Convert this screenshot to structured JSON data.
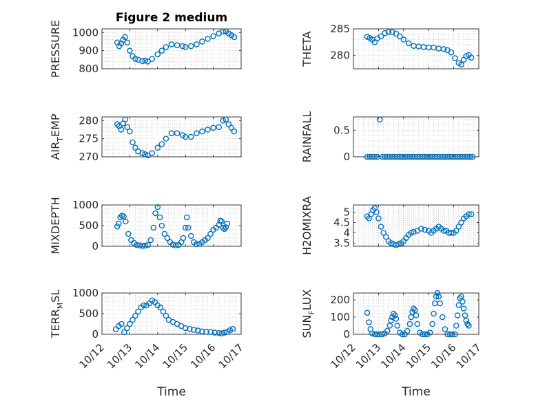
{
  "figure_title": "Figure 2 medium",
  "colors": {
    "marker": "#0072BD",
    "axis": "#262626",
    "grid": "#c8c8c8"
  },
  "chart_data": [
    {
      "type": "scatter",
      "ylabel": "PRESSURE",
      "xlim": [
        0,
        5
      ],
      "ylim": [
        800,
        1020
      ],
      "yticks": [
        800,
        900,
        1000
      ],
      "x": [
        0.55,
        0.62,
        0.69,
        0.76,
        0.83,
        0.91,
        1.0,
        1.1,
        1.2,
        1.3,
        1.45,
        1.55,
        1.65,
        1.8,
        2.0,
        2.15,
        2.3,
        2.5,
        2.7,
        2.9,
        3.0,
        3.2,
        3.4,
        3.6,
        3.8,
        4.0,
        4.2,
        4.35,
        4.45,
        4.55,
        4.65,
        4.75
      ],
      "y": [
        945,
        925,
        940,
        960,
        975,
        945,
        900,
        870,
        855,
        850,
        842,
        845,
        840,
        855,
        880,
        900,
        920,
        935,
        930,
        925,
        920,
        925,
        935,
        950,
        965,
        980,
        995,
        1005,
        1005,
        995,
        985,
        975
      ]
    },
    {
      "type": "scatter",
      "ylabel": "THETA",
      "xlim": [
        0,
        5
      ],
      "ylim": [
        277.5,
        285
      ],
      "yticks": [
        280,
        285
      ],
      "x": [
        0.55,
        0.65,
        0.75,
        0.85,
        0.95,
        1.1,
        1.25,
        1.4,
        1.55,
        1.7,
        1.85,
        2.0,
        2.2,
        2.4,
        2.6,
        2.8,
        3.0,
        3.2,
        3.4,
        3.6,
        3.75,
        3.9,
        4.05,
        4.2,
        4.3,
        4.4,
        4.5,
        4.6,
        4.7
      ],
      "y": [
        283.5,
        283.3,
        283.0,
        282.5,
        283.2,
        283.6,
        284.2,
        284.4,
        284.4,
        284.1,
        283.6,
        283.0,
        282.3,
        281.8,
        281.7,
        281.6,
        281.5,
        281.5,
        281.3,
        281.2,
        281.0,
        280.6,
        279.5,
        278.6,
        278.3,
        279.2,
        279.9,
        280.1,
        279.6
      ]
    },
    {
      "type": "scatter",
      "ylabel": "AIR_TEMP",
      "ylabel_main": "AIR",
      "ylabel_sub": "T",
      "ylabel_rest": "EMP",
      "xlim": [
        0,
        5
      ],
      "ylim": [
        270,
        281
      ],
      "yticks": [
        270,
        275,
        280
      ],
      "x": [
        0.55,
        0.62,
        0.69,
        0.76,
        0.83,
        0.91,
        1.0,
        1.1,
        1.2,
        1.3,
        1.45,
        1.55,
        1.65,
        1.8,
        2.0,
        2.15,
        2.3,
        2.5,
        2.7,
        2.9,
        3.0,
        3.2,
        3.4,
        3.6,
        3.8,
        4.0,
        4.2,
        4.35,
        4.45,
        4.55,
        4.65,
        4.75
      ],
      "y": [
        279,
        278.5,
        277.5,
        279.2,
        280.3,
        278.2,
        277,
        274,
        272.5,
        271.5,
        271,
        270.7,
        270.4,
        271,
        272.5,
        273.5,
        275,
        276.5,
        276.5,
        276,
        275.5,
        275.5,
        276.5,
        277,
        277.5,
        278,
        278.2,
        280,
        280.3,
        279,
        278,
        277
      ]
    },
    {
      "type": "scatter",
      "ylabel": "RAINFALL",
      "xlim": [
        0,
        5
      ],
      "ylim": [
        0,
        0.75
      ],
      "yticks": [
        0,
        0.5
      ],
      "x": [
        0.55,
        0.65,
        0.75,
        0.85,
        0.95,
        1.05,
        1.15,
        1.25,
        1.35,
        1.45,
        1.55,
        1.65,
        1.75,
        1.85,
        1.95,
        2.05,
        2.15,
        2.25,
        2.35,
        2.45,
        2.55,
        2.65,
        2.75,
        2.85,
        2.95,
        3.05,
        3.15,
        3.25,
        3.35,
        3.45,
        3.55,
        3.65,
        3.75,
        3.85,
        3.95,
        4.05,
        4.15,
        4.25,
        4.35,
        4.45,
        4.55,
        4.65,
        4.75
      ],
      "y": [
        0,
        0,
        0,
        0,
        0,
        0.7,
        0,
        0,
        0,
        0,
        0,
        0,
        0,
        0,
        0,
        0,
        0,
        0,
        0,
        0,
        0,
        0,
        0,
        0,
        0,
        0,
        0,
        0,
        0,
        0,
        0,
        0,
        0,
        0,
        0,
        0,
        0,
        0,
        0,
        0,
        0,
        0,
        0
      ]
    },
    {
      "type": "scatter",
      "ylabel": "MIXDEPTH",
      "xlim": [
        0,
        5
      ],
      "ylim": [
        0,
        1000
      ],
      "yticks": [
        0,
        500,
        1000
      ],
      "x": [
        0.55,
        0.6,
        0.66,
        0.72,
        0.78,
        0.85,
        0.95,
        1.05,
        1.15,
        1.25,
        1.35,
        1.45,
        1.55,
        1.65,
        1.75,
        1.85,
        1.92,
        2.0,
        2.08,
        2.15,
        2.25,
        2.35,
        2.45,
        2.55,
        2.65,
        2.75,
        2.85,
        2.92,
        3.0,
        3.05,
        3.1,
        3.2,
        3.3,
        3.4,
        3.5,
        3.6,
        3.7,
        3.8,
        3.9,
        4.0,
        4.1,
        4.2,
        4.25,
        4.3,
        4.35,
        4.4,
        4.45,
        4.5
      ],
      "y": [
        480,
        550,
        700,
        740,
        720,
        600,
        300,
        150,
        80,
        30,
        20,
        10,
        15,
        30,
        150,
        450,
        800,
        950,
        700,
        500,
        300,
        200,
        100,
        40,
        20,
        30,
        100,
        200,
        450,
        700,
        450,
        250,
        100,
        50,
        60,
        100,
        150,
        200,
        300,
        400,
        450,
        520,
        620,
        600,
        450,
        420,
        460,
        550
      ]
    },
    {
      "type": "scatter",
      "ylabel": "H2OMIXRA",
      "xlim": [
        0,
        5
      ],
      "ylim": [
        3.35,
        5.35
      ],
      "yticks": [
        3.5,
        4,
        4.5,
        5
      ],
      "x": [
        0.55,
        0.62,
        0.7,
        0.78,
        0.85,
        0.92,
        1.0,
        1.1,
        1.2,
        1.3,
        1.4,
        1.5,
        1.6,
        1.7,
        1.8,
        1.9,
        2.0,
        2.1,
        2.2,
        2.3,
        2.4,
        2.55,
        2.7,
        2.85,
        3.0,
        3.1,
        3.2,
        3.3,
        3.4,
        3.5,
        3.6,
        3.7,
        3.8,
        3.9,
        4.0,
        4.1,
        4.2,
        4.3,
        4.4,
        4.5,
        4.6,
        4.7
      ],
      "y": [
        4.8,
        4.7,
        4.9,
        5.1,
        5.2,
        5.0,
        4.7,
        4.3,
        4.0,
        3.8,
        3.6,
        3.5,
        3.45,
        3.4,
        3.45,
        3.5,
        3.6,
        3.75,
        3.9,
        4.0,
        4.05,
        4.1,
        4.2,
        4.15,
        4.1,
        4.0,
        4.1,
        4.2,
        4.3,
        4.2,
        4.1,
        4.1,
        4.0,
        4.0,
        4.0,
        4.1,
        4.3,
        4.5,
        4.7,
        4.8,
        4.9,
        4.9
      ]
    },
    {
      "type": "scatter",
      "ylabel": "TERR_MSL",
      "ylabel_main": "TERR",
      "ylabel_sub": "M",
      "ylabel_rest": "SL",
      "xlim": [
        0,
        5
      ],
      "ylim": [
        0,
        1000
      ],
      "yticks": [
        0,
        500,
        1000
      ],
      "x": [
        0.5,
        0.6,
        0.7,
        0.8,
        0.9,
        1.0,
        1.1,
        1.2,
        1.3,
        1.4,
        1.5,
        1.6,
        1.7,
        1.8,
        1.9,
        2.0,
        2.1,
        2.2,
        2.3,
        2.4,
        2.55,
        2.7,
        2.85,
        3.0,
        3.15,
        3.3,
        3.45,
        3.6,
        3.75,
        3.9,
        4.05,
        4.2,
        4.3,
        4.4,
        4.5,
        4.6,
        4.7
      ],
      "y": [
        120,
        200,
        250,
        50,
        150,
        250,
        350,
        450,
        550,
        650,
        700,
        700,
        750,
        820,
        780,
        700,
        650,
        550,
        450,
        350,
        300,
        250,
        200,
        150,
        130,
        110,
        90,
        70,
        60,
        60,
        40,
        30,
        20,
        40,
        60,
        100,
        130
      ]
    },
    {
      "type": "scatter",
      "ylabel": "SUN_FLUX",
      "ylabel_main": "SUN",
      "ylabel_sub": "F",
      "ylabel_rest": "LUX",
      "xlim": [
        0,
        5
      ],
      "ylim": [
        0,
        240
      ],
      "yticks": [
        0,
        100,
        200
      ],
      "x": [
        0.55,
        0.62,
        0.68,
        0.75,
        0.85,
        0.95,
        1.05,
        1.15,
        1.25,
        1.35,
        1.45,
        1.5,
        1.55,
        1.6,
        1.65,
        1.7,
        1.75,
        1.85,
        1.95,
        2.05,
        2.15,
        2.25,
        2.3,
        2.35,
        2.4,
        2.45,
        2.5,
        2.55,
        2.65,
        2.75,
        2.85,
        2.95,
        3.05,
        3.15,
        3.2,
        3.25,
        3.3,
        3.35,
        3.4,
        3.45,
        3.55,
        3.65,
        3.75,
        3.85,
        3.95,
        4.05,
        4.1,
        4.15,
        4.2,
        4.25,
        4.3,
        4.35,
        4.4,
        4.45,
        4.5,
        4.55,
        4.6
      ],
      "y": [
        125,
        70,
        30,
        5,
        0,
        0,
        0,
        0,
        5,
        20,
        50,
        80,
        100,
        120,
        110,
        90,
        50,
        10,
        0,
        0,
        20,
        60,
        100,
        130,
        150,
        140,
        110,
        60,
        10,
        0,
        0,
        0,
        10,
        60,
        120,
        180,
        220,
        240,
        220,
        180,
        100,
        30,
        0,
        0,
        0,
        0,
        50,
        110,
        170,
        210,
        220,
        190,
        150,
        110,
        80,
        60,
        50
      ]
    }
  ],
  "axes_common": {
    "xticks": [
      0,
      1,
      2,
      3,
      4,
      5
    ],
    "xtick_labels": [
      "10/12",
      "10/13",
      "10/14",
      "10/15",
      "10/16",
      "10/17"
    ],
    "xlabel": "Time",
    "grid": "minor-dotted"
  }
}
